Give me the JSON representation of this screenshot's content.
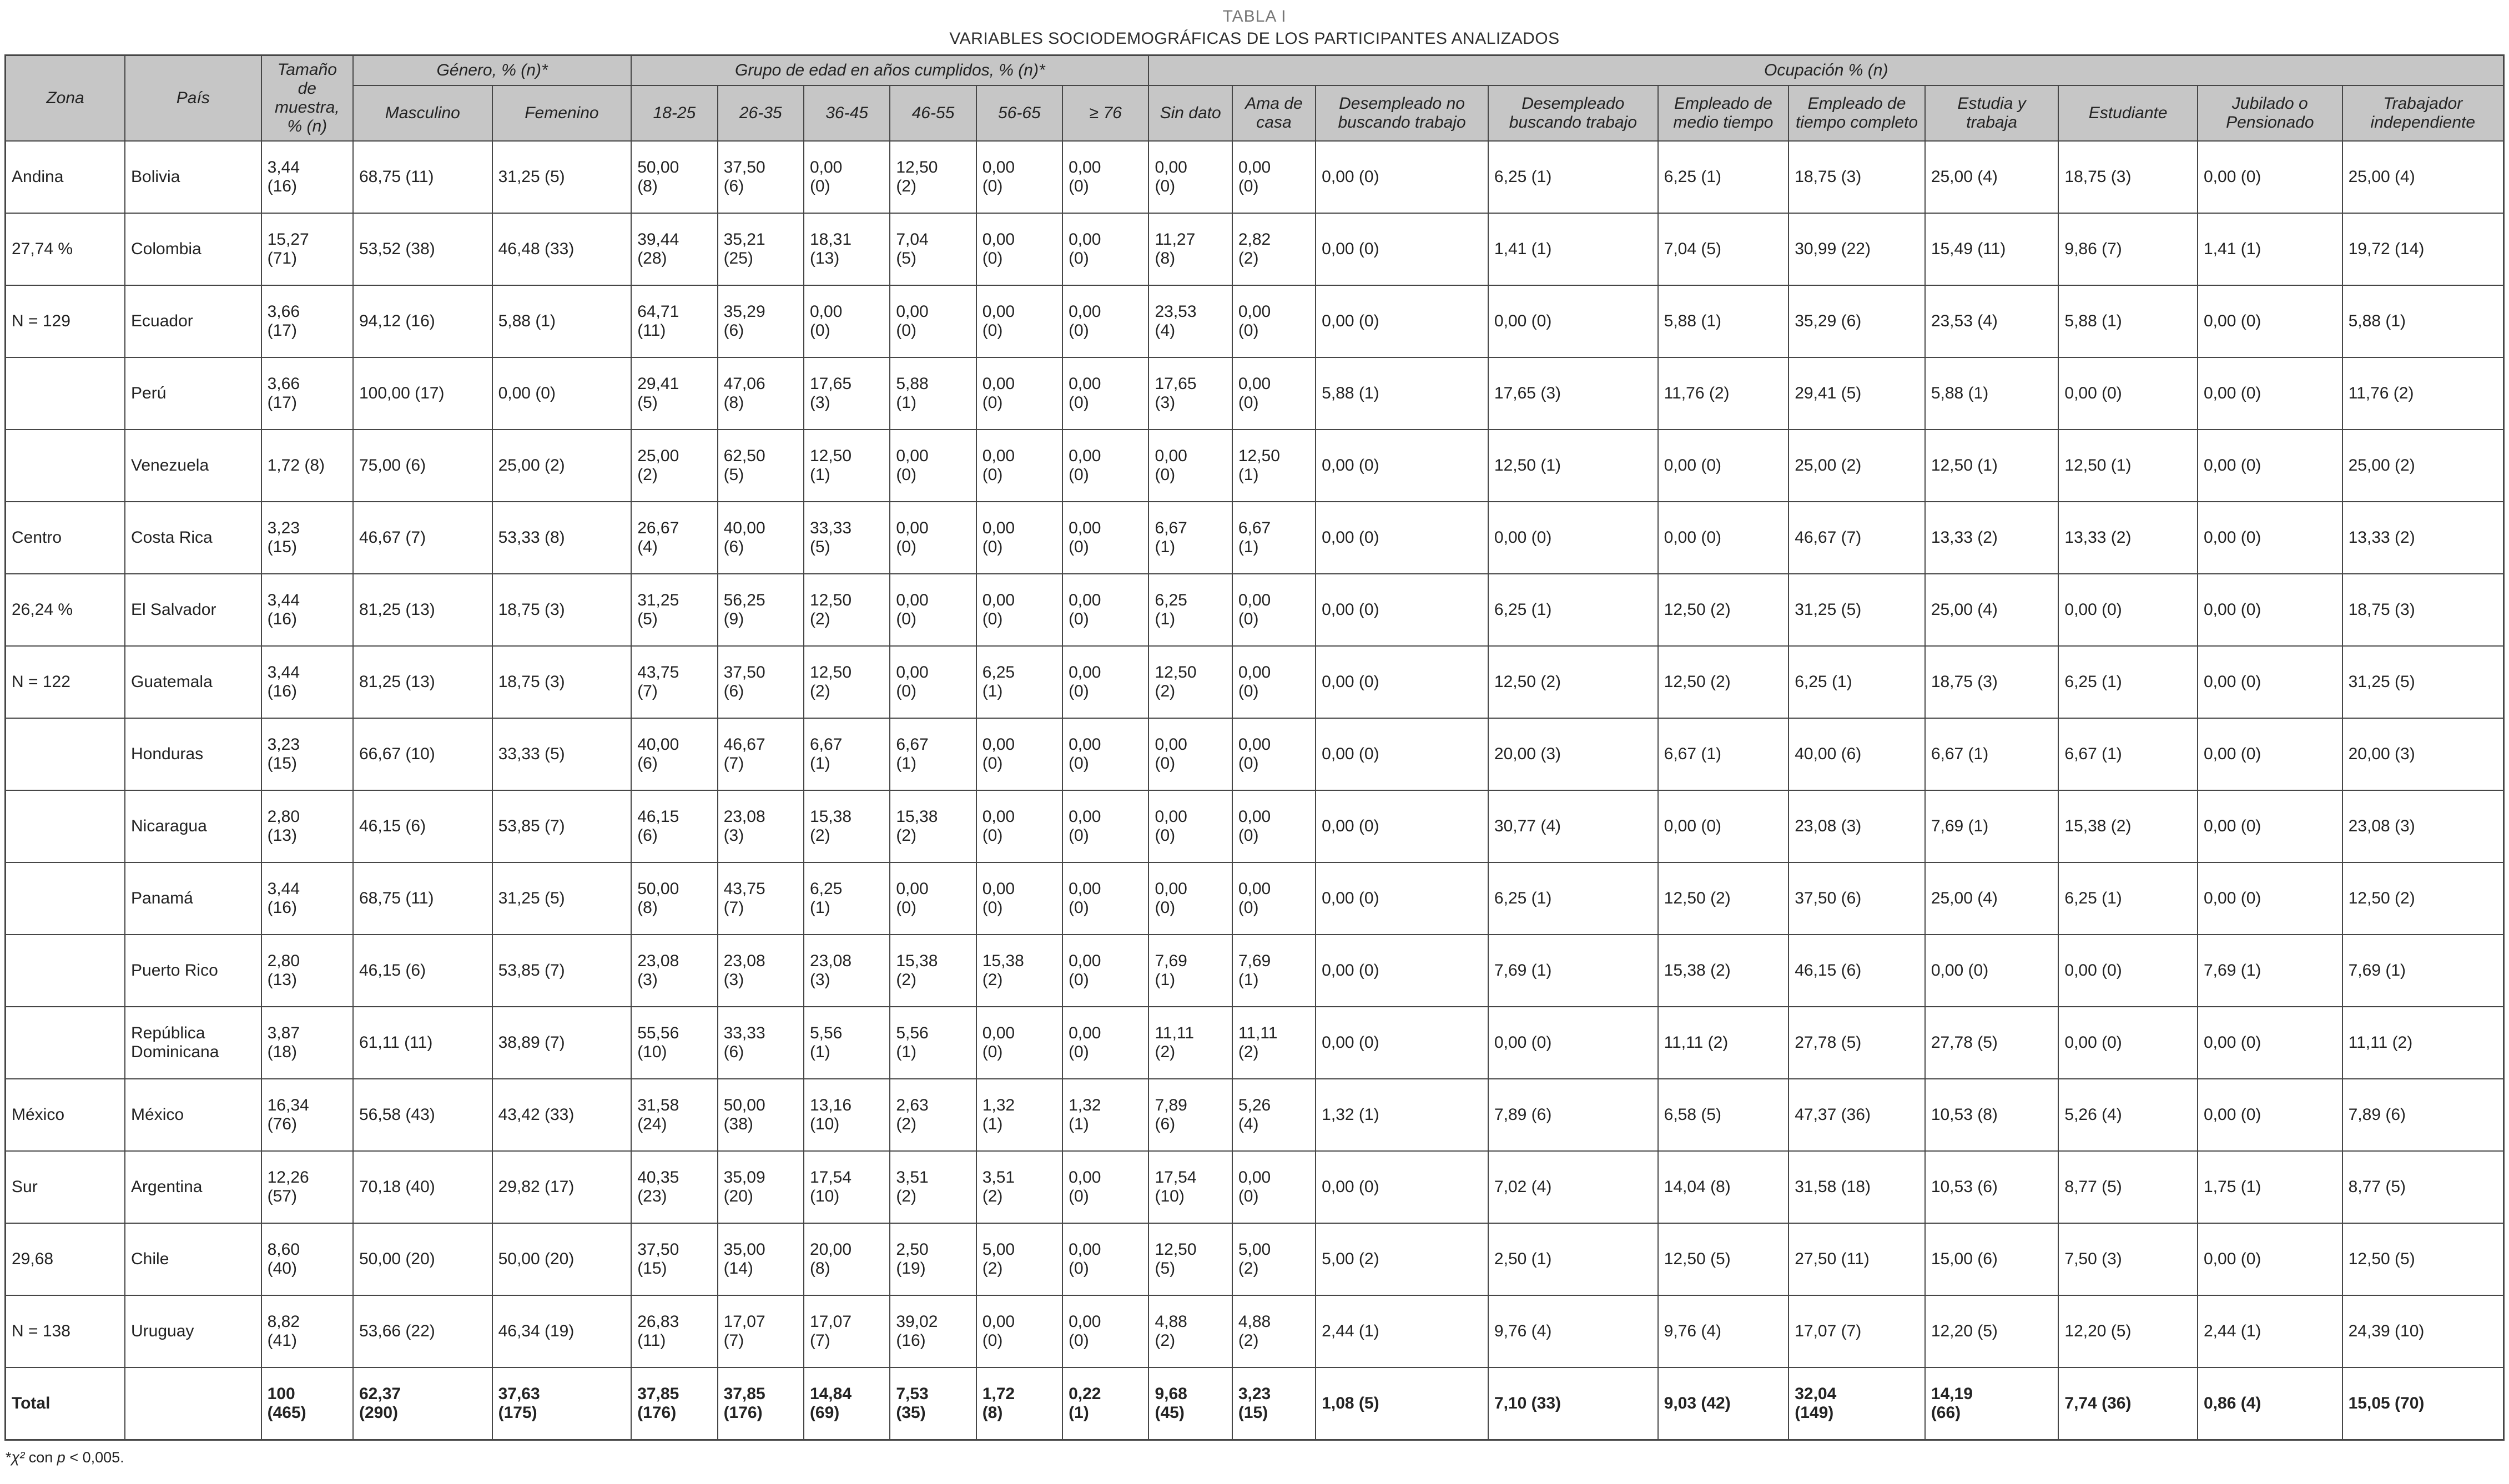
{
  "page": {
    "kicker": "TABLA I",
    "title": "VARIABLES SOCIODEMOGRÁFICAS DE LOS PARTICIPANTES ANALIZADOS",
    "footnote": {
      "star": "*",
      "chi": "χ²",
      "middle": " con ",
      "p": "p",
      "rest": " < 0,005."
    }
  },
  "table": {
    "group_headers": {
      "zona": "Zona",
      "pais": "País",
      "tamano": "Tamaño de muestra, % (n)",
      "genero": "Género, % (n)*",
      "edad": "Grupo de edad en años cumplidos, % (n)*",
      "ocupacion": "Ocupación % (n)"
    },
    "sub_headers": [
      "Masculino",
      "Femenino",
      "18-25",
      "26-35",
      "36-45",
      "46-55",
      "56-65",
      "≥ 76",
      "Sin dato",
      "Ama de casa",
      "Desempleado no buscando trabajo",
      "Desempleado buscando trabajo",
      "Empleado de medio tiempo",
      "Empleado de tiempo completo",
      "Estudia y trabaja",
      "Estudiante",
      "Jubilado o Pensionado",
      "Trabajador independiente"
    ],
    "rows": [
      {
        "zona": "Andina",
        "pais": "Bolivia",
        "cells": [
          "3,44 (16)",
          "68,75 (11)",
          "31,25 (5)",
          "50,00 (8)",
          "37,50 (6)",
          "0,00 (0)",
          "12,50 (2)",
          "0,00 (0)",
          "0,00 (0)",
          "0,00 (0)",
          "0,00 (0)",
          "0,00 (0)",
          "6,25 (1)",
          "6,25 (1)",
          "18,75 (3)",
          "25,00 (4)",
          "18,75 (3)",
          "0,00 (0)",
          "25,00 (4)"
        ]
      },
      {
        "zona": "27,74 %",
        "pais": "Colombia",
        "cells": [
          "15,27 (71)",
          "53,52 (38)",
          "46,48 (33)",
          "39,44 (28)",
          "35,21 (25)",
          "18,31 (13)",
          "7,04 (5)",
          "0,00 (0)",
          "0,00 (0)",
          "11,27 (8)",
          "2,82 (2)",
          "0,00 (0)",
          "1,41 (1)",
          "7,04 (5)",
          "30,99 (22)",
          "15,49 (11)",
          "9,86 (7)",
          "1,41 (1)",
          "19,72 (14)"
        ]
      },
      {
        "zona": "N = 129",
        "pais": "Ecuador",
        "cells": [
          "3,66 (17)",
          "94,12 (16)",
          "5,88 (1)",
          "64,71 (11)",
          "35,29 (6)",
          "0,00 (0)",
          "0,00 (0)",
          "0,00 (0)",
          "0,00 (0)",
          "23,53 (4)",
          "0,00 (0)",
          "0,00 (0)",
          "0,00 (0)",
          "5,88 (1)",
          "35,29 (6)",
          "23,53 (4)",
          "5,88 (1)",
          "0,00 (0)",
          "5,88 (1)"
        ]
      },
      {
        "zona": "",
        "pais": "Perú",
        "cells": [
          "3,66 (17)",
          "100,00 (17)",
          "0,00 (0)",
          "29,41 (5)",
          "47,06 (8)",
          "17,65 (3)",
          "5,88 (1)",
          "0,00 (0)",
          "0,00 (0)",
          "17,65 (3)",
          "0,00 (0)",
          "5,88 (1)",
          "17,65 (3)",
          "11,76 (2)",
          "29,41 (5)",
          "5,88 (1)",
          "0,00 (0)",
          "0,00 (0)",
          "11,76 (2)"
        ]
      },
      {
        "zona": "",
        "pais": "Venezuela",
        "cells": [
          "1,72 (8)",
          "75,00 (6)",
          "25,00 (2)",
          "25,00 (2)",
          "62,50 (5)",
          "12,50 (1)",
          "0,00 (0)",
          "0,00 (0)",
          "0,00 (0)",
          "0,00 (0)",
          "12,50 (1)",
          "0,00 (0)",
          "12,50 (1)",
          "0,00 (0)",
          "25,00 (2)",
          "12,50 (1)",
          "12,50 (1)",
          "0,00 (0)",
          "25,00 (2)"
        ]
      },
      {
        "zona": "Centro",
        "pais": "Costa Rica",
        "cells": [
          "3,23 (15)",
          "46,67 (7)",
          "53,33 (8)",
          "26,67 (4)",
          "40,00 (6)",
          "33,33 (5)",
          "0,00 (0)",
          "0,00 (0)",
          "0,00 (0)",
          "6,67 (1)",
          "6,67 (1)",
          "0,00 (0)",
          "0,00 (0)",
          "0,00 (0)",
          "46,67 (7)",
          "13,33 (2)",
          "13,33 (2)",
          "0,00 (0)",
          "13,33 (2)"
        ]
      },
      {
        "zona": "26,24 %",
        "pais": "El Salvador",
        "cells": [
          "3,44 (16)",
          "81,25 (13)",
          "18,75 (3)",
          "31,25 (5)",
          "56,25 (9)",
          "12,50 (2)",
          "0,00 (0)",
          "0,00 (0)",
          "0,00 (0)",
          "6,25 (1)",
          "0,00 (0)",
          "0,00 (0)",
          "6,25 (1)",
          "12,50 (2)",
          "31,25 (5)",
          "25,00 (4)",
          "0,00 (0)",
          "0,00 (0)",
          "18,75 (3)"
        ]
      },
      {
        "zona": "N = 122",
        "pais": "Guatemala",
        "cells": [
          "3,44 (16)",
          "81,25 (13)",
          "18,75 (3)",
          "43,75 (7)",
          "37,50 (6)",
          "12,50 (2)",
          "0,00 (0)",
          "6,25 (1)",
          "0,00 (0)",
          "12,50 (2)",
          "0,00 (0)",
          "0,00 (0)",
          "12,50 (2)",
          "12,50 (2)",
          "6,25 (1)",
          "18,75 (3)",
          "6,25 (1)",
          "0,00 (0)",
          "31,25 (5)"
        ]
      },
      {
        "zona": "",
        "pais": "Honduras",
        "cells": [
          "3,23 (15)",
          "66,67 (10)",
          "33,33 (5)",
          "40,00 (6)",
          "46,67 (7)",
          "6,67 (1)",
          "6,67 (1)",
          "0,00 (0)",
          "0,00 (0)",
          "0,00 (0)",
          "0,00 (0)",
          "0,00 (0)",
          "20,00 (3)",
          "6,67 (1)",
          "40,00 (6)",
          "6,67 (1)",
          "6,67 (1)",
          "0,00 (0)",
          "20,00 (3)"
        ]
      },
      {
        "zona": "",
        "pais": "Nicaragua",
        "cells": [
          "2,80 (13)",
          "46,15 (6)",
          "53,85 (7)",
          "46,15 (6)",
          "23,08 (3)",
          "15,38 (2)",
          "15,38 (2)",
          "0,00 (0)",
          "0,00 (0)",
          "0,00 (0)",
          "0,00 (0)",
          "0,00 (0)",
          "30,77 (4)",
          "0,00 (0)",
          "23,08 (3)",
          "7,69 (1)",
          "15,38 (2)",
          "0,00 (0)",
          "23,08 (3)"
        ]
      },
      {
        "zona": "",
        "pais": "Panamá",
        "cells": [
          "3,44 (16)",
          "68,75 (11)",
          "31,25 (5)",
          "50,00 (8)",
          "43,75 (7)",
          "6,25 (1)",
          "0,00 (0)",
          "0,00 (0)",
          "0,00 (0)",
          "0,00 (0)",
          "0,00 (0)",
          "0,00 (0)",
          "6,25 (1)",
          "12,50 (2)",
          "37,50 (6)",
          "25,00 (4)",
          "6,25 (1)",
          "0,00 (0)",
          "12,50 (2)"
        ]
      },
      {
        "zona": "",
        "pais": "Puerto Rico",
        "cells": [
          "2,80 (13)",
          "46,15 (6)",
          "53,85 (7)",
          "23,08 (3)",
          "23,08 (3)",
          "23,08 (3)",
          "15,38 (2)",
          "15,38 (2)",
          "0,00 (0)",
          "7,69 (1)",
          "7,69 (1)",
          "0,00 (0)",
          "7,69 (1)",
          "15,38 (2)",
          "46,15 (6)",
          "0,00 (0)",
          "0,00 (0)",
          "7,69 (1)",
          "7,69 (1)"
        ]
      },
      {
        "zona": "",
        "pais": "República Dominicana",
        "cells": [
          "3,87 (18)",
          "61,11 (11)",
          "38,89 (7)",
          "55,56 (10)",
          "33,33 (6)",
          "5,56 (1)",
          "5,56 (1)",
          "0,00 (0)",
          "0,00 (0)",
          "11,11 (2)",
          "11,11 (2)",
          "0,00 (0)",
          "0,00 (0)",
          "11,11 (2)",
          "27,78 (5)",
          "27,78 (5)",
          "0,00 (0)",
          "0,00 (0)",
          "11,11 (2)"
        ]
      },
      {
        "zona": "México",
        "pais": "México",
        "cells": [
          "16,34 (76)",
          "56,58 (43)",
          "43,42 (33)",
          "31,58 (24)",
          "50,00 (38)",
          "13,16 (10)",
          "2,63 (2)",
          "1,32 (1)",
          "1,32 (1)",
          "7,89 (6)",
          "5,26 (4)",
          "1,32 (1)",
          "7,89 (6)",
          "6,58 (5)",
          "47,37 (36)",
          "10,53 (8)",
          "5,26 (4)",
          "0,00 (0)",
          "7,89 (6)"
        ]
      },
      {
        "zona": "Sur",
        "pais": "Argentina",
        "cells": [
          "12,26 (57)",
          "70,18 (40)",
          "29,82 (17)",
          "40,35 (23)",
          "35,09 (20)",
          "17,54 (10)",
          "3,51 (2)",
          "3,51 (2)",
          "0,00 (0)",
          "17,54 (10)",
          "0,00 (0)",
          "0,00 (0)",
          "7,02 (4)",
          "14,04 (8)",
          "31,58 (18)",
          "10,53 (6)",
          "8,77 (5)",
          "1,75 (1)",
          "8,77 (5)"
        ]
      },
      {
        "zona": "29,68",
        "pais": "Chile",
        "cells": [
          "8,60 (40)",
          "50,00 (20)",
          "50,00 (20)",
          "37,50 (15)",
          "35,00 (14)",
          "20,00 (8)",
          "2,50 (19)",
          "5,00 (2)",
          "0,00 (0)",
          "12,50 (5)",
          "5,00 (2)",
          "5,00 (2)",
          "2,50 (1)",
          "12,50 (5)",
          "27,50 (11)",
          "15,00 (6)",
          "7,50 (3)",
          "0,00 (0)",
          "12,50 (5)"
        ]
      },
      {
        "zona": "N = 138",
        "pais": "Uruguay",
        "cells": [
          "8,82 (41)",
          "53,66 (22)",
          "46,34 (19)",
          "26,83 (11)",
          "17,07 (7)",
          "17,07 (7)",
          "39,02 (16)",
          "0,00 (0)",
          "0,00 (0)",
          "4,88 (2)",
          "4,88 (2)",
          "2,44 (1)",
          "9,76 (4)",
          "9,76 (4)",
          "17,07 (7)",
          "12,20 (5)",
          "12,20 (5)",
          "2,44 (1)",
          "24,39 (10)"
        ]
      }
    ],
    "total_row": {
      "zona": "Total",
      "pais": "",
      "cells": [
        "100 (465)",
        "62,37 (290)",
        "37,63 (175)",
        "37,85 (176)",
        "37,85 (176)",
        "14,84 (69)",
        "7,53 (35)",
        "1,72 (8)",
        "0,22 (1)",
        "9,68 (45)",
        "3,23 (15)",
        "1,08 (5)",
        "7,10 (33)",
        "9,03 (42)",
        "32,04 (149)",
        "14,19 (66)",
        "7,74 (36)",
        "0,86 (4)",
        "15,05 (70)"
      ]
    }
  }
}
